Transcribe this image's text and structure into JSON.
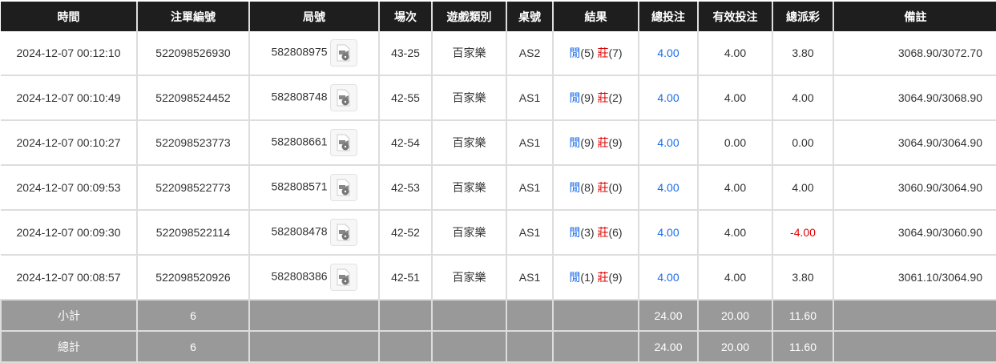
{
  "headers": [
    "時間",
    "注單編號",
    "局號",
    "場次",
    "遊戲類別",
    "桌號",
    "結果",
    "總投注",
    "有效投注",
    "總派彩",
    "備註"
  ],
  "rows": [
    {
      "time": "2024-12-07 00:12:10",
      "bet_id": "522098526930",
      "round": "582808975",
      "shoe": "43-25",
      "game": "百家樂",
      "table": "AS2",
      "player_label": "閒",
      "player": "(5)",
      "banker_label": "莊",
      "banker": "(7)",
      "total": "4.00",
      "valid": "4.00",
      "payout": "3.80",
      "note": "3068.90/3072.70"
    },
    {
      "time": "2024-12-07 00:10:49",
      "bet_id": "522098524452",
      "round": "582808748",
      "shoe": "42-55",
      "game": "百家樂",
      "table": "AS1",
      "player_label": "閒",
      "player": "(9)",
      "banker_label": "莊",
      "banker": "(2)",
      "total": "4.00",
      "valid": "4.00",
      "payout": "4.00",
      "note": "3064.90/3068.90"
    },
    {
      "time": "2024-12-07 00:10:27",
      "bet_id": "522098523773",
      "round": "582808661",
      "shoe": "42-54",
      "game": "百家樂",
      "table": "AS1",
      "player_label": "閒",
      "player": "(9)",
      "banker_label": "莊",
      "banker": "(9)",
      "total": "4.00",
      "valid": "0.00",
      "payout": "0.00",
      "note": "3064.90/3064.90"
    },
    {
      "time": "2024-12-07 00:09:53",
      "bet_id": "522098522773",
      "round": "582808571",
      "shoe": "42-53",
      "game": "百家樂",
      "table": "AS1",
      "player_label": "閒",
      "player": "(8)",
      "banker_label": "莊",
      "banker": "(0)",
      "total": "4.00",
      "valid": "4.00",
      "payout": "4.00",
      "note": "3060.90/3064.90"
    },
    {
      "time": "2024-12-07 00:09:30",
      "bet_id": "522098522114",
      "round": "582808478",
      "shoe": "42-52",
      "game": "百家樂",
      "table": "AS1",
      "player_label": "閒",
      "player": "(3)",
      "banker_label": "莊",
      "banker": "(6)",
      "total": "4.00",
      "valid": "4.00",
      "payout": "-4.00",
      "note": "3064.90/3060.90"
    },
    {
      "time": "2024-12-07 00:08:57",
      "bet_id": "522098520926",
      "round": "582808386",
      "shoe": "42-51",
      "game": "百家樂",
      "table": "AS1",
      "player_label": "閒",
      "player": "(1)",
      "banker_label": "莊",
      "banker": "(9)",
      "total": "4.00",
      "valid": "4.00",
      "payout": "3.80",
      "note": "3061.10/3064.90"
    }
  ],
  "subtotal": {
    "label": "小計",
    "count": "6",
    "total": "24.00",
    "valid": "20.00",
    "payout": "11.60"
  },
  "grandtotal": {
    "label": "總計",
    "count": "6",
    "total": "24.00",
    "valid": "20.00",
    "payout": "11.60"
  },
  "colors": {
    "player": "#1a6ce8",
    "banker": "#e00000",
    "negative": "#e00000",
    "header_bg": "#1e1e1e",
    "summary_bg": "#999999"
  },
  "icons": {
    "round_video": "video-file-icon"
  }
}
